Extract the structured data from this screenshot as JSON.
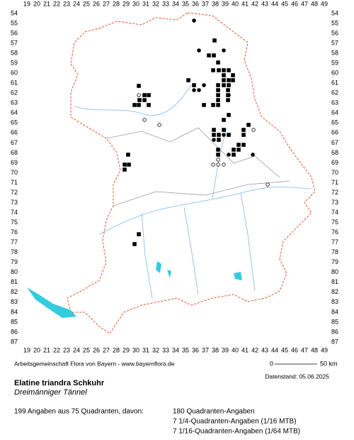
{
  "map": {
    "columns": [
      19,
      20,
      21,
      22,
      23,
      24,
      25,
      26,
      27,
      28,
      29,
      30,
      31,
      32,
      33,
      34,
      35,
      36,
      37,
      38,
      39,
      40,
      41,
      42,
      43,
      44,
      45,
      46,
      47,
      48,
      49
    ],
    "rows": [
      54,
      55,
      56,
      57,
      58,
      59,
      60,
      61,
      62,
      63,
      64,
      65,
      66,
      67,
      68,
      69,
      70,
      71,
      72,
      73,
      74,
      75,
      76,
      77,
      78,
      79,
      80,
      81,
      82,
      83,
      84,
      85,
      86,
      87
    ],
    "squares": [
      [
        30.29,
        61.27
      ],
      [
        30.86,
        62.2
      ],
      [
        31.29,
        62.2
      ],
      [
        30.86,
        62.7
      ],
      [
        30.36,
        62.7
      ],
      [
        29.86,
        63.19
      ],
      [
        30.29,
        63.19
      ],
      [
        31.29,
        63.19
      ],
      [
        29.21,
        68.18
      ],
      [
        28.86,
        69.18
      ],
      [
        29.29,
        69.18
      ],
      [
        28.86,
        69.68
      ],
      [
        30.29,
        76.17
      ],
      [
        29.86,
        77.16
      ],
      [
        37.93,
        56.71
      ],
      [
        37.36,
        58.21
      ],
      [
        37.86,
        58.21
      ],
      [
        38.29,
        58.92
      ],
      [
        37.79,
        59.7
      ],
      [
        38.36,
        59.7
      ],
      [
        38.86,
        59.7
      ],
      [
        39.36,
        59.7
      ],
      [
        38.86,
        60.2
      ],
      [
        39.79,
        60.2
      ],
      [
        39.36,
        60.7
      ],
      [
        38.86,
        60.7
      ],
      [
        39.79,
        60.7
      ],
      [
        38.29,
        61.2
      ],
      [
        38.86,
        61.2
      ],
      [
        39.36,
        61.2
      ],
      [
        38.29,
        61.7
      ],
      [
        39.29,
        61.7
      ],
      [
        38.29,
        62.2
      ],
      [
        39.29,
        62.2
      ],
      [
        38.29,
        62.7
      ],
      [
        39.29,
        62.7
      ],
      [
        37.79,
        63.19
      ],
      [
        38.29,
        63.19
      ],
      [
        36.86,
        63.19
      ],
      [
        35.29,
        60.7
      ],
      [
        35.86,
        61.2
      ],
      [
        39.36,
        64.19
      ],
      [
        38.86,
        64.69
      ],
      [
        37.86,
        65.69
      ],
      [
        38.86,
        65.69
      ],
      [
        38.36,
        66.19
      ],
      [
        37.86,
        66.19
      ],
      [
        39.36,
        66.19
      ],
      [
        38.36,
        66.69
      ],
      [
        40.86,
        66.19
      ],
      [
        40.36,
        67.19
      ],
      [
        40.86,
        67.19
      ],
      [
        38.29,
        67.68
      ],
      [
        39.86,
        67.68
      ],
      [
        40.36,
        67.68
      ],
      [
        38.29,
        68.18
      ],
      [
        39.86,
        68.18
      ],
      [
        41.36,
        65.19
      ],
      [
        40.86,
        65.69
      ]
    ],
    "dots": [
      [
        35.86,
        54.71
      ],
      [
        38.86,
        57.71
      ],
      [
        36.36,
        57.71
      ],
      [
        35.86,
        61.7
      ],
      [
        36.36,
        61.7
      ],
      [
        36.86,
        61.2
      ],
      [
        37.86,
        66.69
      ],
      [
        38.86,
        66.19
      ],
      [
        41.79,
        68.18
      ],
      [
        39.36,
        68.18
      ],
      [
        39.36,
        62.2
      ]
    ],
    "circles": [
      [
        30.29,
        62.2
      ],
      [
        30.86,
        64.69
      ],
      [
        32.36,
        65.19
      ],
      [
        41.86,
        65.69
      ],
      [
        38.29,
        68.68
      ],
      [
        37.79,
        69.18
      ],
      [
        38.29,
        69.18
      ],
      [
        38.86,
        69.18
      ],
      [
        43.29,
        71.18
      ]
    ],
    "credit": "Arbeitsgemeinschaft Flora von Bayern - www.bayernflora.de",
    "scale_start": "0",
    "scale_end": "50 km",
    "date": "Datenstand: 05.06.2025",
    "species": "Elatine triandra Schkuhr",
    "common_name": "Dreimänniger Tännel",
    "summary": "199 Angaben aus 75 Quadranten, davon:",
    "details": [
      "180 Quadranten-Angaben",
      "7 1/4-Quadranten-Angaben (1/16 MTB)",
      "7 1/16-Quadranten-Angaben (1/64 MTB)"
    ]
  }
}
